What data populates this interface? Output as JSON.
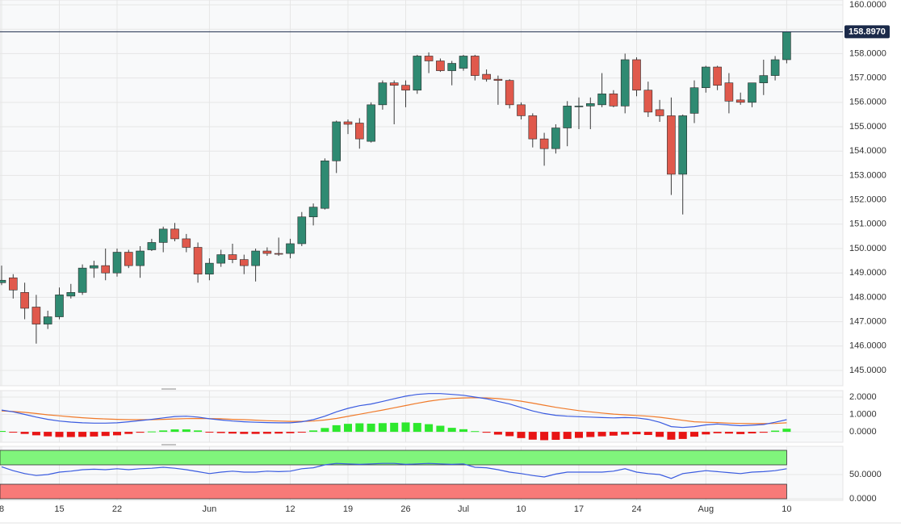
{
  "chart_data": [
    {
      "type": "candlestick",
      "categories": [
        "8",
        null,
        null,
        null,
        null,
        "15",
        null,
        null,
        null,
        null,
        "22",
        null,
        null,
        null,
        null,
        null,
        null,
        null,
        "Jun",
        null,
        null,
        null,
        null,
        null,
        null,
        "12",
        null,
        null,
        null,
        null,
        "19",
        null,
        null,
        null,
        null,
        "26",
        null,
        null,
        null,
        null,
        "Jul",
        null,
        null,
        null,
        null,
        "10",
        null,
        null,
        null,
        null,
        "17",
        null,
        null,
        null,
        null,
        "24",
        null,
        null,
        null,
        null,
        null,
        "Aug",
        null,
        null,
        null,
        null,
        null,
        null,
        "10"
      ],
      "open": [
        148.6,
        148.8,
        148.2,
        147.6,
        146.9,
        147.2,
        148.05,
        148.2,
        149.2,
        149.3,
        149.0,
        149.85,
        149.3,
        149.95,
        150.25,
        150.8,
        150.4,
        150.05,
        148.95,
        149.4,
        149.75,
        149.55,
        149.3,
        149.9,
        149.8,
        149.8,
        150.2,
        151.3,
        151.65,
        153.6,
        155.2,
        155.15,
        154.4,
        155.9,
        156.8,
        156.7,
        156.5,
        157.9,
        157.7,
        157.3,
        157.4,
        157.9,
        157.15,
        156.95,
        156.9,
        155.9,
        155.45,
        154.5,
        154.1,
        154.95,
        155.85,
        155.85,
        155.9,
        156.35,
        155.85,
        157.75,
        156.5,
        155.7,
        155.45,
        153.05,
        155.55,
        156.6,
        157.45,
        156.8,
        156.1,
        156.0,
        156.8,
        157.1,
        157.75
      ],
      "high": [
        149.3,
        148.95,
        148.6,
        148.1,
        147.45,
        148.4,
        148.55,
        149.35,
        149.5,
        150.0,
        150.0,
        149.95,
        150.1,
        150.4,
        150.9,
        151.05,
        150.6,
        150.25,
        149.6,
        149.95,
        150.2,
        149.75,
        150.0,
        150.05,
        150.45,
        150.4,
        151.5,
        151.85,
        153.7,
        155.25,
        155.3,
        155.35,
        156.0,
        156.9,
        156.9,
        156.9,
        157.95,
        158.05,
        157.8,
        157.7,
        157.95,
        157.95,
        157.35,
        157.1,
        156.95,
        156.0,
        155.55,
        154.75,
        155.1,
        156.05,
        156.2,
        156.2,
        157.2,
        156.5,
        158.0,
        157.85,
        156.85,
        156.1,
        156.2,
        155.5,
        156.9,
        157.5,
        157.5,
        157.2,
        156.4,
        156.8,
        157.75,
        157.9,
        158.9
      ],
      "low": [
        148.5,
        147.95,
        147.1,
        146.1,
        146.7,
        147.1,
        147.95,
        148.1,
        148.8,
        148.7,
        148.85,
        149.2,
        148.8,
        149.9,
        149.85,
        150.3,
        149.85,
        148.6,
        148.7,
        149.25,
        149.4,
        148.95,
        148.65,
        149.7,
        149.7,
        149.6,
        150.1,
        150.95,
        151.6,
        153.1,
        154.7,
        154.1,
        154.35,
        155.7,
        155.1,
        155.8,
        156.35,
        157.2,
        157.25,
        156.7,
        157.3,
        156.9,
        156.85,
        155.9,
        155.75,
        155.3,
        154.15,
        153.4,
        153.9,
        154.2,
        154.9,
        154.9,
        155.8,
        155.8,
        155.55,
        156.25,
        155.4,
        155.2,
        152.2,
        151.4,
        155.15,
        156.4,
        156.5,
        155.55,
        155.9,
        155.8,
        156.3,
        156.9,
        157.6
      ],
      "close": [
        148.7,
        148.3,
        147.55,
        146.9,
        147.2,
        148.1,
        148.2,
        149.2,
        149.3,
        149.0,
        149.85,
        149.3,
        149.9,
        150.25,
        150.8,
        150.4,
        150.05,
        148.95,
        149.4,
        149.75,
        149.55,
        149.3,
        149.9,
        149.8,
        149.78,
        150.2,
        151.3,
        151.7,
        153.6,
        155.2,
        155.1,
        154.5,
        155.9,
        156.8,
        156.7,
        156.5,
        157.9,
        157.7,
        157.3,
        157.6,
        157.9,
        157.1,
        156.95,
        156.9,
        155.9,
        155.45,
        154.5,
        154.1,
        154.95,
        155.85,
        155.85,
        155.95,
        156.35,
        155.85,
        157.75,
        156.5,
        155.6,
        155.45,
        153.05,
        155.45,
        156.6,
        157.45,
        156.7,
        156.05,
        156.0,
        156.8,
        157.1,
        157.75,
        158.897
      ],
      "up_color": "#2f8a72",
      "down_color": "#e0594c",
      "last_price": {
        "value": 158.897,
        "label": "158.8970"
      },
      "ylim": [
        144.37,
        160.2
      ],
      "yticks": [
        {
          "value": 145,
          "label": "145.0000"
        },
        {
          "value": 146,
          "label": "146.0000"
        },
        {
          "value": 147,
          "label": "147.0000"
        },
        {
          "value": 148,
          "label": "148.0000"
        },
        {
          "value": 149,
          "label": "149.0000"
        },
        {
          "value": 150,
          "label": "150.0000"
        },
        {
          "value": 151,
          "label": "151.0000"
        },
        {
          "value": 152,
          "label": "152.0000"
        },
        {
          "value": 153,
          "label": "153.0000"
        },
        {
          "value": 154,
          "label": "154.0000"
        },
        {
          "value": 155,
          "label": "155.0000"
        },
        {
          "value": 156,
          "label": "156.0000"
        },
        {
          "value": 157,
          "label": "157.0000"
        },
        {
          "value": 158,
          "label": "158.0000"
        },
        {
          "value": 159,
          "label": "159.0000"
        },
        {
          "value": 160,
          "label": "160.0000"
        }
      ],
      "grid": true
    },
    {
      "type": "macd",
      "macd": [
        1.25,
        1.15,
        1.0,
        0.85,
        0.72,
        0.62,
        0.56,
        0.52,
        0.5,
        0.5,
        0.52,
        0.58,
        0.65,
        0.72,
        0.8,
        0.88,
        0.9,
        0.85,
        0.75,
        0.68,
        0.62,
        0.58,
        0.55,
        0.53,
        0.52,
        0.52,
        0.58,
        0.7,
        0.9,
        1.15,
        1.35,
        1.5,
        1.6,
        1.75,
        1.9,
        2.05,
        2.15,
        2.2,
        2.2,
        2.15,
        2.1,
        2.0,
        1.9,
        1.75,
        1.6,
        1.4,
        1.2,
        1.05,
        0.95,
        0.9,
        0.87,
        0.85,
        0.82,
        0.8,
        0.82,
        0.8,
        0.72,
        0.55,
        0.3,
        0.25,
        0.3,
        0.4,
        0.45,
        0.4,
        0.35,
        0.38,
        0.42,
        0.55,
        0.7
      ],
      "signal": [
        1.2,
        1.17,
        1.12,
        1.05,
        0.98,
        0.92,
        0.86,
        0.81,
        0.77,
        0.74,
        0.72,
        0.7,
        0.7,
        0.7,
        0.72,
        0.74,
        0.76,
        0.77,
        0.76,
        0.75,
        0.72,
        0.7,
        0.67,
        0.64,
        0.62,
        0.6,
        0.6,
        0.62,
        0.68,
        0.77,
        0.89,
        1.01,
        1.13,
        1.25,
        1.38,
        1.51,
        1.64,
        1.76,
        1.85,
        1.92,
        1.95,
        1.96,
        1.95,
        1.91,
        1.85,
        1.76,
        1.65,
        1.53,
        1.41,
        1.31,
        1.22,
        1.15,
        1.08,
        1.02,
        0.98,
        0.94,
        0.9,
        0.84,
        0.75,
        0.66,
        0.58,
        0.55,
        0.53,
        0.5,
        0.48,
        0.47,
        0.47,
        0.48,
        0.52
      ],
      "histogram": [
        0.05,
        -0.02,
        -0.12,
        -0.2,
        -0.26,
        -0.3,
        -0.3,
        -0.29,
        -0.27,
        -0.24,
        -0.2,
        -0.12,
        -0.05,
        0.02,
        0.08,
        0.14,
        0.14,
        0.08,
        -0.01,
        -0.07,
        -0.1,
        -0.12,
        -0.12,
        -0.11,
        -0.1,
        -0.08,
        -0.02,
        0.08,
        0.22,
        0.38,
        0.46,
        0.49,
        0.47,
        0.5,
        0.52,
        0.54,
        0.51,
        0.44,
        0.35,
        0.23,
        0.15,
        0.04,
        -0.05,
        -0.16,
        -0.25,
        -0.36,
        -0.45,
        -0.48,
        -0.46,
        -0.41,
        -0.35,
        -0.3,
        -0.26,
        -0.22,
        -0.16,
        -0.14,
        -0.18,
        -0.29,
        -0.45,
        -0.41,
        -0.28,
        -0.15,
        -0.08,
        -0.1,
        -0.13,
        -0.09,
        -0.05,
        0.07,
        0.18
      ],
      "macd_color": "#3a5be0",
      "signal_color": "#f07a2a",
      "hist_up_color": "#2ee82e",
      "hist_down_color": "#e81515",
      "ylim": [
        -0.6,
        2.37
      ],
      "yticks": [
        {
          "value": 0,
          "label": "0.0000"
        },
        {
          "value": 1,
          "label": "1.0000"
        },
        {
          "value": 2,
          "label": "2.0000"
        }
      ],
      "grid": true
    },
    {
      "type": "rsi",
      "values": [
        66,
        58,
        52,
        48,
        50,
        55,
        57,
        60,
        61,
        60,
        62,
        60,
        62,
        63,
        65,
        63,
        60,
        56,
        52,
        55,
        57,
        55,
        55,
        57,
        56,
        57,
        62,
        64,
        70,
        73,
        72,
        71,
        72,
        73,
        73,
        71,
        72,
        73,
        72,
        71,
        72,
        65,
        64,
        60,
        55,
        52,
        48,
        45,
        51,
        55,
        55,
        55,
        55,
        57,
        62,
        55,
        52,
        50,
        42,
        52,
        55,
        58,
        56,
        54,
        52,
        55,
        56,
        58,
        62
      ],
      "color": "#3a5be0",
      "bands": [
        {
          "from": 70,
          "to": 100,
          "color": "#80f57c"
        },
        {
          "from": 0,
          "to": 30,
          "color": "#f87a78"
        }
      ],
      "ylim": [
        -3.3,
        108.3
      ],
      "yticks": [
        {
          "value": 0,
          "label": "0.0000"
        },
        {
          "value": 50,
          "label": "50.0000"
        }
      ],
      "grid": true
    }
  ]
}
